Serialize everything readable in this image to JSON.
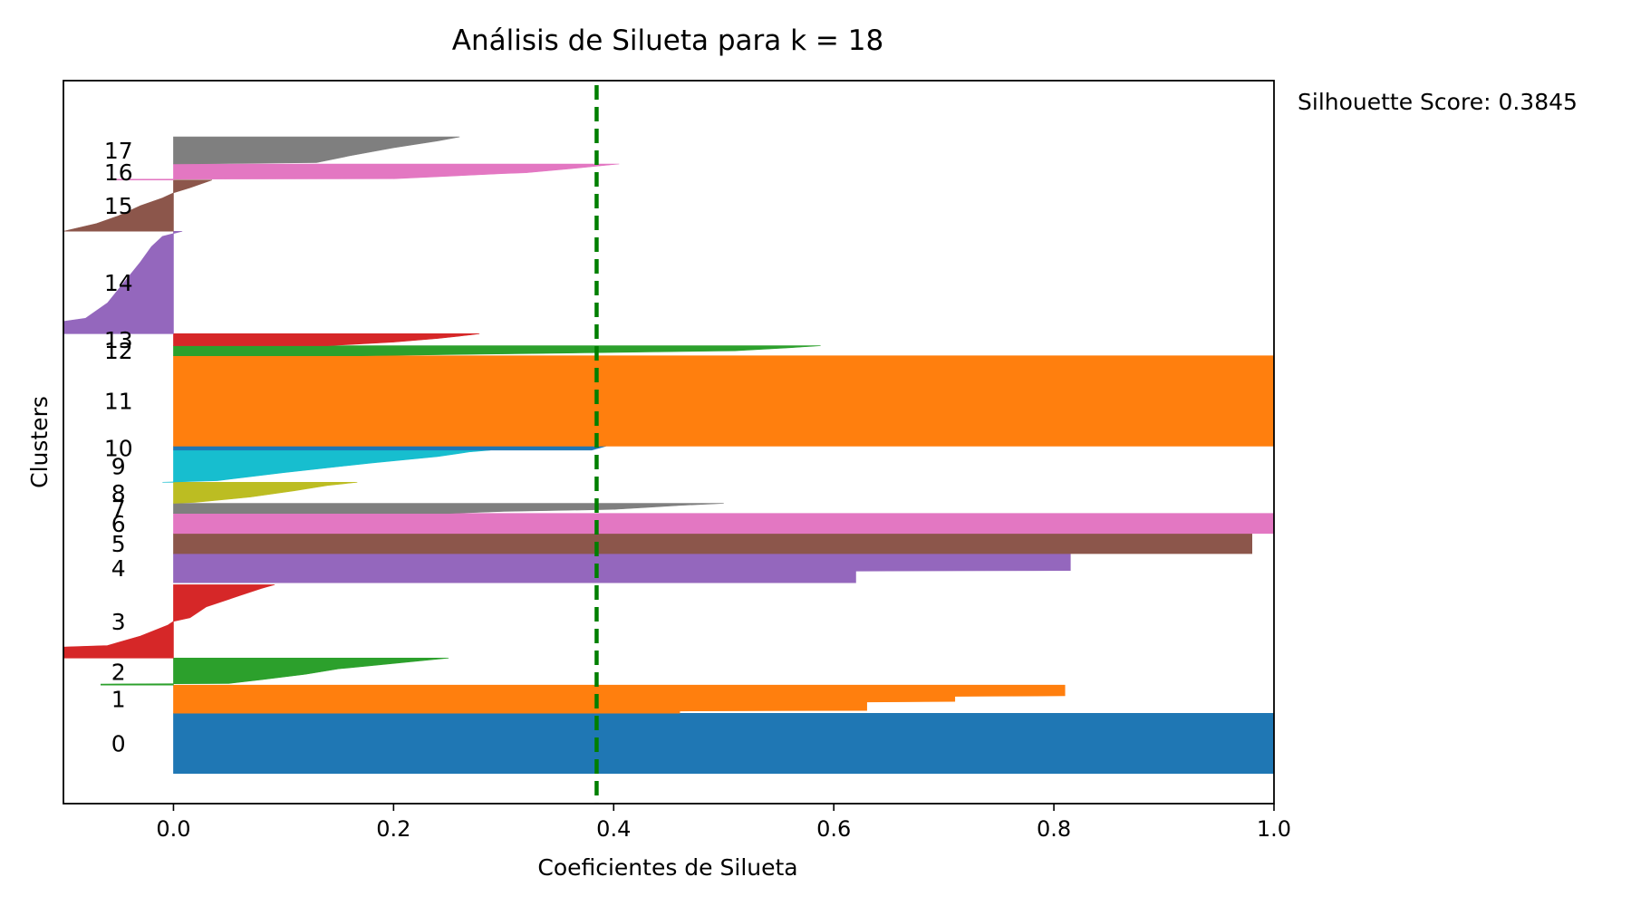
{
  "chart_data": {
    "type": "bar",
    "orientation": "horizontal",
    "title": "Análisis de Silueta para k = 18",
    "xlabel": "Coeficientes de Silueta",
    "ylabel": "Clusters",
    "xlim": [
      -0.1,
      1.0
    ],
    "ylim": [
      0,
      720
    ],
    "x_ticks": [
      "0.0",
      "0.2",
      "0.4",
      "0.6",
      "0.8",
      "1.0"
    ],
    "x_tick_values": [
      0.0,
      0.2,
      0.4,
      0.6,
      0.8,
      1.0
    ],
    "grid": false,
    "reference_line": {
      "value": 0.3845,
      "color": "#007f00",
      "style": "dashed"
    },
    "annotation": "Silhouette Score: 0.3845",
    "clusters": [
      {
        "label": "0",
        "color": "#1f77b4",
        "y_start": 30,
        "y_end": 90,
        "profile": [
          [
            0,
            1.0
          ],
          [
            1,
            1.0
          ]
        ]
      },
      {
        "label": "1",
        "color": "#ff7f0e",
        "y_start": 90,
        "y_end": 118,
        "profile": [
          [
            0,
            0.46
          ],
          [
            0.08,
            0.46
          ],
          [
            0.1,
            0.63
          ],
          [
            0.4,
            0.63
          ],
          [
            0.42,
            0.71
          ],
          [
            0.6,
            0.71
          ],
          [
            0.62,
            0.81
          ],
          [
            1,
            0.81
          ]
        ]
      },
      {
        "label": "2",
        "color": "#2ca02c",
        "y_start": 118,
        "y_end": 145,
        "profile": [
          [
            0,
            -0.066
          ],
          [
            0.04,
            -0.066
          ],
          [
            0.06,
            0.05
          ],
          [
            0.2,
            0.08
          ],
          [
            0.4,
            0.12
          ],
          [
            0.6,
            0.15
          ],
          [
            0.8,
            0.2
          ],
          [
            1,
            0.25
          ]
        ]
      },
      {
        "label": "3",
        "color": "#d62728",
        "y_start": 145,
        "y_end": 218,
        "profile": [
          [
            0,
            -0.1
          ],
          [
            0.15,
            -0.1
          ],
          [
            0.17,
            -0.06
          ],
          [
            0.3,
            -0.03
          ],
          [
            0.45,
            -0.005
          ],
          [
            0.5,
            0.0
          ],
          [
            0.55,
            0.015
          ],
          [
            0.7,
            0.03
          ],
          [
            0.85,
            0.06
          ],
          [
            0.95,
            0.08
          ],
          [
            1,
            0.092
          ]
        ]
      },
      {
        "label": "4",
        "color": "#9467bd",
        "y_start": 220,
        "y_end": 249,
        "profile": [
          [
            0,
            0.62
          ],
          [
            0.4,
            0.62
          ],
          [
            0.42,
            0.815
          ],
          [
            1,
            0.815
          ]
        ]
      },
      {
        "label": "5",
        "color": "#8c564b",
        "y_start": 249,
        "y_end": 269,
        "profile": [
          [
            0,
            0.98
          ],
          [
            1,
            0.98
          ]
        ]
      },
      {
        "label": "6",
        "color": "#e377c2",
        "y_start": 269,
        "y_end": 289,
        "profile": [
          [
            0,
            1.0
          ],
          [
            1,
            1.0
          ]
        ]
      },
      {
        "label": "7",
        "color": "#7f7f7f",
        "y_start": 289,
        "y_end": 299,
        "profile": [
          [
            0,
            0.25
          ],
          [
            0.2,
            0.3
          ],
          [
            0.4,
            0.4
          ],
          [
            0.6,
            0.43
          ],
          [
            0.8,
            0.46
          ],
          [
            1,
            0.5
          ]
        ]
      },
      {
        "label": "8",
        "color": "#bcbd22",
        "y_start": 299,
        "y_end": 320,
        "profile": [
          [
            0,
            0.0
          ],
          [
            0.05,
            0.02
          ],
          [
            0.3,
            0.07
          ],
          [
            0.6,
            0.11
          ],
          [
            0.85,
            0.14
          ],
          [
            1,
            0.167
          ]
        ]
      },
      {
        "label": "9",
        "color": "#17becf",
        "y_start": 320,
        "y_end": 352,
        "profile": [
          [
            0,
            -0.01
          ],
          [
            0.05,
            0.04
          ],
          [
            0.3,
            0.1
          ],
          [
            0.6,
            0.18
          ],
          [
            0.8,
            0.24
          ],
          [
            0.95,
            0.27
          ],
          [
            1,
            0.288
          ]
        ]
      },
      {
        "label": "10",
        "color": "#1f77b4",
        "y_start": 352,
        "y_end": 356,
        "profile": [
          [
            0,
            0.38
          ],
          [
            1,
            0.393
          ]
        ]
      },
      {
        "label": "11",
        "color": "#ff7f0e",
        "y_start": 356,
        "y_end": 446,
        "profile": [
          [
            0,
            1.0
          ],
          [
            1,
            1.0
          ]
        ]
      },
      {
        "label": "12",
        "color": "#2ca02c",
        "y_start": 446,
        "y_end": 456,
        "profile": [
          [
            0,
            0.17
          ],
          [
            0.2,
            0.31
          ],
          [
            0.5,
            0.51
          ],
          [
            0.8,
            0.56
          ],
          [
            1,
            0.588
          ]
        ]
      },
      {
        "label": "13",
        "color": "#d62728",
        "y_start": 456,
        "y_end": 468,
        "profile": [
          [
            0,
            0.14
          ],
          [
            0.3,
            0.2
          ],
          [
            0.6,
            0.24
          ],
          [
            0.9,
            0.27
          ],
          [
            1,
            0.278
          ]
        ]
      },
      {
        "label": "14",
        "color": "#9467bd",
        "y_start": 468,
        "y_end": 570,
        "profile": [
          [
            0,
            -0.1
          ],
          [
            0.12,
            -0.1
          ],
          [
            0.15,
            -0.08
          ],
          [
            0.3,
            -0.06
          ],
          [
            0.5,
            -0.045
          ],
          [
            0.7,
            -0.03
          ],
          [
            0.85,
            -0.02
          ],
          [
            0.95,
            -0.01
          ],
          [
            1,
            0.008
          ]
        ]
      },
      {
        "label": "15",
        "color": "#8c564b",
        "y_start": 570,
        "y_end": 621,
        "profile": [
          [
            0,
            -0.1
          ],
          [
            0.15,
            -0.07
          ],
          [
            0.3,
            -0.05
          ],
          [
            0.5,
            -0.03
          ],
          [
            0.65,
            -0.01
          ],
          [
            0.75,
            0.0
          ],
          [
            0.85,
            0.015
          ],
          [
            1,
            0.035
          ]
        ]
      },
      {
        "label": "16",
        "color": "#e377c2",
        "y_start": 621,
        "y_end": 637,
        "profile": [
          [
            0,
            -0.055
          ],
          [
            0.05,
            -0.055
          ],
          [
            0.08,
            0.2
          ],
          [
            0.4,
            0.3
          ],
          [
            0.45,
            0.32
          ],
          [
            0.7,
            0.36
          ],
          [
            1,
            0.405
          ]
        ]
      },
      {
        "label": "17",
        "color": "#7f7f7f",
        "y_start": 637,
        "y_end": 664,
        "profile": [
          [
            0,
            0.0
          ],
          [
            0.05,
            0.13
          ],
          [
            0.3,
            0.16
          ],
          [
            0.6,
            0.2
          ],
          [
            0.85,
            0.24
          ],
          [
            1,
            0.26
          ]
        ]
      }
    ]
  }
}
